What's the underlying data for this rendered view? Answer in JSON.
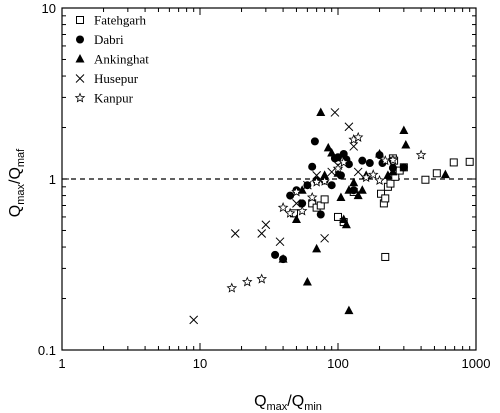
{
  "chart_data": {
    "type": "scatter",
    "x_scale": "log",
    "y_scale": "log",
    "xlim": [
      1,
      1000
    ],
    "ylim": [
      0.1,
      10
    ],
    "x_ticks": [
      "1",
      "10",
      "100",
      "1000"
    ],
    "y_ticks": [
      "0.1",
      "1",
      "10"
    ],
    "xlabel": {
      "main": "Q",
      "sub1": "max",
      "mid": "/Q",
      "sub2": "min"
    },
    "ylabel": {
      "main": "Q",
      "sub1": "max",
      "mid": "/Q",
      "sub2": "maf"
    },
    "reference_line": {
      "y": 1,
      "style": "dashed"
    },
    "legend_position": "top-left",
    "series": [
      {
        "name": "Fatehgarh",
        "marker": "open-square",
        "points": [
          [
            48,
            0.63
          ],
          [
            65,
            0.72
          ],
          [
            70,
            0.68
          ],
          [
            75,
            0.7
          ],
          [
            80,
            0.76
          ],
          [
            100,
            0.6
          ],
          [
            110,
            0.56
          ],
          [
            130,
            0.84
          ],
          [
            205,
            0.82
          ],
          [
            215,
            0.72
          ],
          [
            220,
            0.77
          ],
          [
            230,
            0.9
          ],
          [
            240,
            0.94
          ],
          [
            250,
            1.32
          ],
          [
            255,
            1.28
          ],
          [
            260,
            1.03
          ],
          [
            280,
            1.12
          ],
          [
            300,
            1.17
          ],
          [
            430,
            0.99
          ],
          [
            520,
            1.08
          ],
          [
            690,
            1.25
          ],
          [
            900,
            1.26
          ],
          [
            220,
            0.35
          ]
        ]
      },
      {
        "name": "Dabri",
        "marker": "filled-circle",
        "points": [
          [
            35,
            0.36
          ],
          [
            40,
            0.34
          ],
          [
            45,
            0.8
          ],
          [
            50,
            0.86
          ],
          [
            55,
            0.72
          ],
          [
            60,
            0.92
          ],
          [
            65,
            1.18
          ],
          [
            68,
            1.66
          ],
          [
            70,
            0.98
          ],
          [
            75,
            0.62
          ],
          [
            80,
            0.98
          ],
          [
            90,
            0.92
          ],
          [
            95,
            1.32
          ],
          [
            100,
            1.34
          ],
          [
            105,
            1.05
          ],
          [
            110,
            1.4
          ],
          [
            115,
            1.3
          ],
          [
            120,
            1.22
          ],
          [
            130,
            0.86
          ],
          [
            150,
            1.28
          ],
          [
            170,
            1.24
          ],
          [
            200,
            1.38
          ],
          [
            210,
            1.24
          ],
          [
            250,
            1.16
          ],
          [
            300,
            1.17
          ]
        ]
      },
      {
        "name": "Ankinghat",
        "marker": "filled-triangle",
        "points": [
          [
            40,
            0.34
          ],
          [
            50,
            0.58
          ],
          [
            55,
            0.86
          ],
          [
            60,
            0.25
          ],
          [
            70,
            0.39
          ],
          [
            75,
            2.45
          ],
          [
            80,
            1.05
          ],
          [
            85,
            1.52
          ],
          [
            90,
            1.42
          ],
          [
            100,
            1.08
          ],
          [
            105,
            0.78
          ],
          [
            110,
            0.58
          ],
          [
            115,
            0.54
          ],
          [
            120,
            0.86
          ],
          [
            130,
            0.95
          ],
          [
            140,
            0.8
          ],
          [
            150,
            0.86
          ],
          [
            160,
            1.05
          ],
          [
            200,
            1.4
          ],
          [
            230,
            1.05
          ],
          [
            250,
            1.1
          ],
          [
            300,
            1.92
          ],
          [
            310,
            1.58
          ],
          [
            600,
            1.06
          ],
          [
            120,
            0.17
          ]
        ]
      },
      {
        "name": "Husepur",
        "marker": "cross",
        "points": [
          [
            9,
            0.15
          ],
          [
            18,
            0.48
          ],
          [
            28,
            0.48
          ],
          [
            30,
            0.54
          ],
          [
            38,
            0.43
          ],
          [
            50,
            0.72
          ],
          [
            60,
            0.92
          ],
          [
            70,
            1.05
          ],
          [
            80,
            0.45
          ],
          [
            90,
            1.1
          ],
          [
            95,
            2.45
          ],
          [
            100,
            1.2
          ],
          [
            120,
            2.02
          ],
          [
            130,
            1.55
          ],
          [
            140,
            1.1
          ]
        ]
      },
      {
        "name": "Kanpur",
        "marker": "open-star",
        "points": [
          [
            17,
            0.23
          ],
          [
            22,
            0.25
          ],
          [
            28,
            0.26
          ],
          [
            40,
            0.68
          ],
          [
            45,
            0.63
          ],
          [
            50,
            0.84
          ],
          [
            55,
            0.65
          ],
          [
            65,
            0.78
          ],
          [
            70,
            0.96
          ],
          [
            80,
            0.97
          ],
          [
            100,
            1.15
          ],
          [
            110,
            1.25
          ],
          [
            130,
            1.7
          ],
          [
            140,
            1.75
          ],
          [
            160,
            1.02
          ],
          [
            180,
            1.06
          ],
          [
            200,
            0.98
          ],
          [
            220,
            1.28
          ],
          [
            250,
            1.29
          ],
          [
            400,
            1.38
          ]
        ]
      }
    ]
  }
}
